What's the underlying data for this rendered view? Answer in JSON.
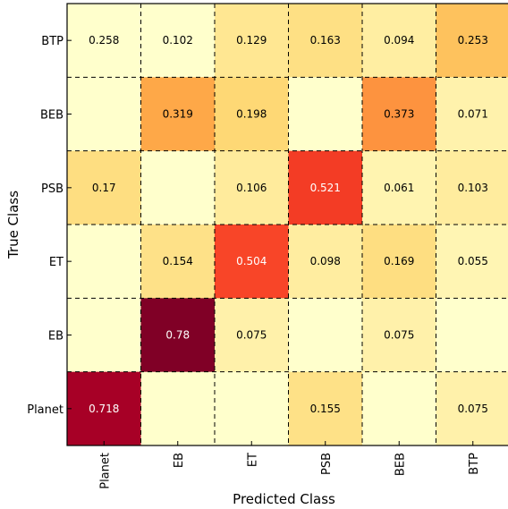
{
  "chart_data": {
    "type": "heatmap",
    "title": "",
    "xlabel": "Predicted Class",
    "ylabel": "True Class",
    "x_categories": [
      "Planet",
      "EB",
      "ET",
      "PSB",
      "BEB",
      "BTP"
    ],
    "y_categories": [
      "BTP",
      "BEB",
      "PSB",
      "ET",
      "EB",
      "Planet"
    ],
    "values": [
      [
        null,
        null,
        0.129,
        0.163,
        0.094,
        0.253
      ],
      [
        null,
        0.319,
        0.198,
        null,
        0.373,
        0.071
      ],
      [
        0.17,
        null,
        0.106,
        0.521,
        0.061,
        0.103
      ],
      [
        null,
        0.154,
        0.504,
        0.098,
        0.169,
        0.055
      ],
      [
        null,
        0.78,
        0.075,
        null,
        0.075,
        null
      ],
      [
        0.718,
        null,
        null,
        0.155,
        null,
        0.075
      ]
    ],
    "labels": [
      [
        "0.258",
        "0.102",
        "0.129",
        "0.163",
        "0.094",
        "0.253"
      ],
      [
        "",
        "0.319",
        "0.198",
        "",
        "0.373",
        "0.071"
      ],
      [
        "0.17",
        "",
        "0.106",
        "0.521",
        "0.061",
        "0.103"
      ],
      [
        "",
        "0.154",
        "0.504",
        "0.098",
        "0.169",
        "0.055"
      ],
      [
        "",
        "0.78",
        "0.075",
        "",
        "0.075",
        ""
      ],
      [
        "0.718",
        "",
        "",
        "0.155",
        "",
        "0.075"
      ]
    ],
    "value_range": [
      0,
      0.78
    ],
    "colormap": "YlOrRd",
    "grid": true,
    "grid_style": "dashed"
  }
}
